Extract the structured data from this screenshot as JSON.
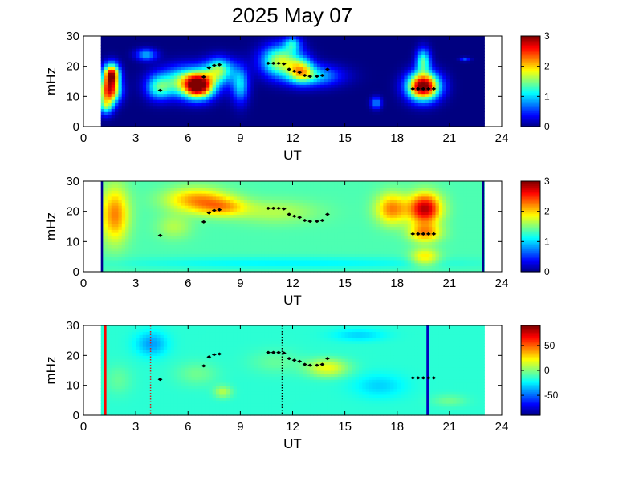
{
  "title": "2025 May 07",
  "colors": {
    "background": "#ffffff",
    "jet_dark_blue": "#00008f",
    "jet_red": "#800000",
    "marker": "#000000"
  },
  "chart_data": [
    {
      "type": "heatmap",
      "panel": "top",
      "xlabel": "UT",
      "ylabel": "mHz",
      "xlim": [
        0,
        24
      ],
      "ylim": [
        0,
        30
      ],
      "xticks": [
        "0",
        "3",
        "6",
        "9",
        "12",
        "15",
        "18",
        "21",
        "24"
      ],
      "yticks": [
        "0",
        "10",
        "20",
        "30"
      ],
      "data_x_range": [
        1,
        23
      ],
      "colormap": "jet",
      "colorbar": {
        "range": [
          0,
          3
        ],
        "ticks": [
          "0",
          "1",
          "2",
          "3"
        ]
      },
      "background_level": 0,
      "blobs": [
        {
          "x": 1.6,
          "y": 17.5,
          "rx": 0.45,
          "ry": 3.5,
          "v": 2.7
        },
        {
          "x": 1.5,
          "y": 12,
          "rx": 0.6,
          "ry": 4,
          "v": 2.5
        },
        {
          "x": 1.3,
          "y": 7,
          "rx": 0.4,
          "ry": 3,
          "v": 1.2
        },
        {
          "x": 6.0,
          "y": 15,
          "rx": 1.6,
          "ry": 5,
          "v": 1.6
        },
        {
          "x": 6.6,
          "y": 13.5,
          "rx": 0.8,
          "ry": 4,
          "v": 2.3
        },
        {
          "x": 4.3,
          "y": 13,
          "rx": 0.7,
          "ry": 4,
          "v": 1.0
        },
        {
          "x": 7.8,
          "y": 19,
          "rx": 0.8,
          "ry": 4,
          "v": 1.4
        },
        {
          "x": 9.0,
          "y": 14,
          "rx": 0.5,
          "ry": 6,
          "v": 1.0
        },
        {
          "x": 3.6,
          "y": 24,
          "rx": 0.6,
          "ry": 2,
          "v": 0.9
        },
        {
          "x": 11.3,
          "y": 22,
          "rx": 1.1,
          "ry": 5,
          "v": 1.7
        },
        {
          "x": 12.5,
          "y": 19,
          "rx": 0.7,
          "ry": 4,
          "v": 1.3
        },
        {
          "x": 13.2,
          "y": 17,
          "rx": 1.6,
          "ry": 3.5,
          "v": 1.0
        },
        {
          "x": 12.0,
          "y": 27.5,
          "rx": 0.5,
          "ry": 2.5,
          "v": 0.9
        },
        {
          "x": 16.8,
          "y": 8,
          "rx": 0.3,
          "ry": 2,
          "v": 0.8
        },
        {
          "x": 19.5,
          "y": 13.5,
          "rx": 0.9,
          "ry": 4.5,
          "v": 3.2
        },
        {
          "x": 19.5,
          "y": 22,
          "rx": 0.4,
          "ry": 4,
          "v": 1.3
        },
        {
          "x": 21.9,
          "y": 22.5,
          "rx": 0.3,
          "ry": 0.7,
          "v": 0.6
        }
      ],
      "markers": [
        [
          4.4,
          12
        ],
        [
          6.9,
          16.5
        ],
        [
          7.2,
          19.5
        ],
        [
          7.5,
          20.3
        ],
        [
          7.8,
          20.5
        ],
        [
          10.6,
          21
        ],
        [
          10.9,
          21
        ],
        [
          11.2,
          21
        ],
        [
          11.5,
          20.8
        ],
        [
          11.8,
          19
        ],
        [
          12.1,
          18.4
        ],
        [
          12.4,
          18
        ],
        [
          12.7,
          17
        ],
        [
          13.0,
          16.7
        ],
        [
          13.4,
          16.7
        ],
        [
          13.7,
          17
        ],
        [
          14.0,
          19
        ],
        [
          18.9,
          12.5
        ],
        [
          19.2,
          12.5
        ],
        [
          19.5,
          12.5
        ],
        [
          19.8,
          12.5
        ],
        [
          20.1,
          12.5
        ]
      ],
      "vlines": []
    },
    {
      "type": "heatmap",
      "panel": "middle",
      "xlabel": "UT",
      "ylabel": "mHz",
      "xlim": [
        0,
        24
      ],
      "ylim": [
        0,
        30
      ],
      "xticks": [
        "0",
        "3",
        "6",
        "9",
        "12",
        "15",
        "18",
        "21",
        "24"
      ],
      "yticks": [
        "0",
        "10",
        "20",
        "30"
      ],
      "data_x_range": [
        1,
        23
      ],
      "colormap": "jet",
      "colorbar": {
        "range": [
          0,
          3
        ],
        "ticks": [
          "0",
          "1",
          "2",
          "3"
        ]
      },
      "background_level": 1.35,
      "blobs": [
        {
          "x": 1.8,
          "y": 19,
          "rx": 0.8,
          "ry": 9,
          "v": 0.9
        },
        {
          "x": 6.5,
          "y": 24,
          "rx": 1.8,
          "ry": 4,
          "v": 0.8
        },
        {
          "x": 8.0,
          "y": 21.5,
          "rx": 1.4,
          "ry": 3,
          "v": 0.6
        },
        {
          "x": 5.2,
          "y": 15,
          "rx": 1.0,
          "ry": 4,
          "v": 0.3
        },
        {
          "x": 11.0,
          "y": 20,
          "rx": 2.5,
          "ry": 4,
          "v": 0.3
        },
        {
          "x": 17.7,
          "y": 21,
          "rx": 0.9,
          "ry": 5,
          "v": 0.9
        },
        {
          "x": 19.6,
          "y": 21,
          "rx": 0.9,
          "ry": 5,
          "v": 1.5
        },
        {
          "x": 19.6,
          "y": 13,
          "rx": 0.9,
          "ry": 3,
          "v": 0.8
        },
        {
          "x": 12.0,
          "y": 3,
          "rx": 10,
          "ry": 2,
          "v": -0.25
        },
        {
          "x": 19.6,
          "y": 5,
          "rx": 0.8,
          "ry": 3,
          "v": 0.6
        }
      ],
      "dark_regions": [
        {
          "x0": 1.0,
          "x1": 1.12,
          "y0": 0,
          "y1": 30
        },
        {
          "x0": 22.88,
          "x1": 23.0,
          "y0": 0,
          "y1": 30
        }
      ],
      "markers": [
        [
          4.4,
          12
        ],
        [
          6.9,
          16.5
        ],
        [
          7.2,
          19.5
        ],
        [
          7.5,
          20.3
        ],
        [
          7.8,
          20.5
        ],
        [
          10.6,
          21
        ],
        [
          10.9,
          21
        ],
        [
          11.2,
          21
        ],
        [
          11.5,
          20.8
        ],
        [
          11.8,
          19
        ],
        [
          12.1,
          18.4
        ],
        [
          12.4,
          18
        ],
        [
          12.7,
          17
        ],
        [
          13.0,
          16.7
        ],
        [
          13.4,
          16.7
        ],
        [
          13.7,
          17
        ],
        [
          14.0,
          19
        ],
        [
          18.9,
          12.5
        ],
        [
          19.2,
          12.5
        ],
        [
          19.5,
          12.5
        ],
        [
          19.8,
          12.5
        ],
        [
          20.1,
          12.5
        ]
      ],
      "vlines": []
    },
    {
      "type": "heatmap",
      "panel": "bottom",
      "xlabel": "UT",
      "ylabel": "mHz",
      "xlim": [
        0,
        24
      ],
      "ylim": [
        0,
        30
      ],
      "xticks": [
        "0",
        "3",
        "6",
        "9",
        "12",
        "15",
        "18",
        "21",
        "24"
      ],
      "yticks": [
        "0",
        "10",
        "20",
        "30"
      ],
      "data_x_range": [
        1,
        23
      ],
      "colormap": "jet",
      "colorbar": {
        "range": [
          -90,
          90
        ],
        "ticks": [
          "50",
          "0",
          "-50"
        ],
        "tick_values": [
          50,
          0,
          -50
        ]
      },
      "background_level": -15,
      "blobs": [
        {
          "x": 3.9,
          "y": 24,
          "rx": 0.9,
          "ry": 4,
          "v": -25
        },
        {
          "x": 8.0,
          "y": 8,
          "rx": 0.5,
          "ry": 2,
          "v": 25
        },
        {
          "x": 14.0,
          "y": 16,
          "rx": 1.2,
          "ry": 3,
          "v": 35
        },
        {
          "x": 2.0,
          "y": 12,
          "rx": 0.8,
          "ry": 5,
          "v": 10
        },
        {
          "x": 15.8,
          "y": 27,
          "rx": 1.5,
          "ry": 2,
          "v": -15
        },
        {
          "x": 6.5,
          "y": 14,
          "rx": 1.2,
          "ry": 4,
          "v": 12
        },
        {
          "x": 11.0,
          "y": 18,
          "rx": 1.5,
          "ry": 4,
          "v": 10
        },
        {
          "x": 21.0,
          "y": 5,
          "rx": 1.0,
          "ry": 2,
          "v": 12
        },
        {
          "x": 17.0,
          "y": 10,
          "rx": 1.5,
          "ry": 4,
          "v": -15
        }
      ],
      "dark_regions": [],
      "markers": [
        [
          4.4,
          12
        ],
        [
          6.9,
          16.5
        ],
        [
          7.2,
          19.5
        ],
        [
          7.5,
          20.3
        ],
        [
          7.8,
          20.5
        ],
        [
          10.6,
          21
        ],
        [
          10.9,
          21
        ],
        [
          11.2,
          21
        ],
        [
          11.5,
          20.8
        ],
        [
          11.8,
          19
        ],
        [
          12.1,
          18.4
        ],
        [
          12.4,
          18
        ],
        [
          12.7,
          17
        ],
        [
          13.0,
          16.7
        ],
        [
          13.4,
          16.7
        ],
        [
          13.7,
          17
        ],
        [
          14.0,
          19
        ],
        [
          18.9,
          12.5
        ],
        [
          19.2,
          12.5
        ],
        [
          19.5,
          12.5
        ],
        [
          19.8,
          12.5
        ],
        [
          20.1,
          12.5
        ]
      ],
      "vlines": [
        {
          "x": 1.25,
          "color": "#ff0000",
          "style": "solid",
          "width": 3
        },
        {
          "x": 3.85,
          "color": "#d02020",
          "style": "dotted",
          "width": 1.5
        },
        {
          "x": 11.4,
          "color": "#000000",
          "style": "dotted",
          "width": 1.5
        },
        {
          "x": 19.75,
          "color": "#0000c0",
          "style": "solid",
          "width": 3
        }
      ]
    }
  ]
}
